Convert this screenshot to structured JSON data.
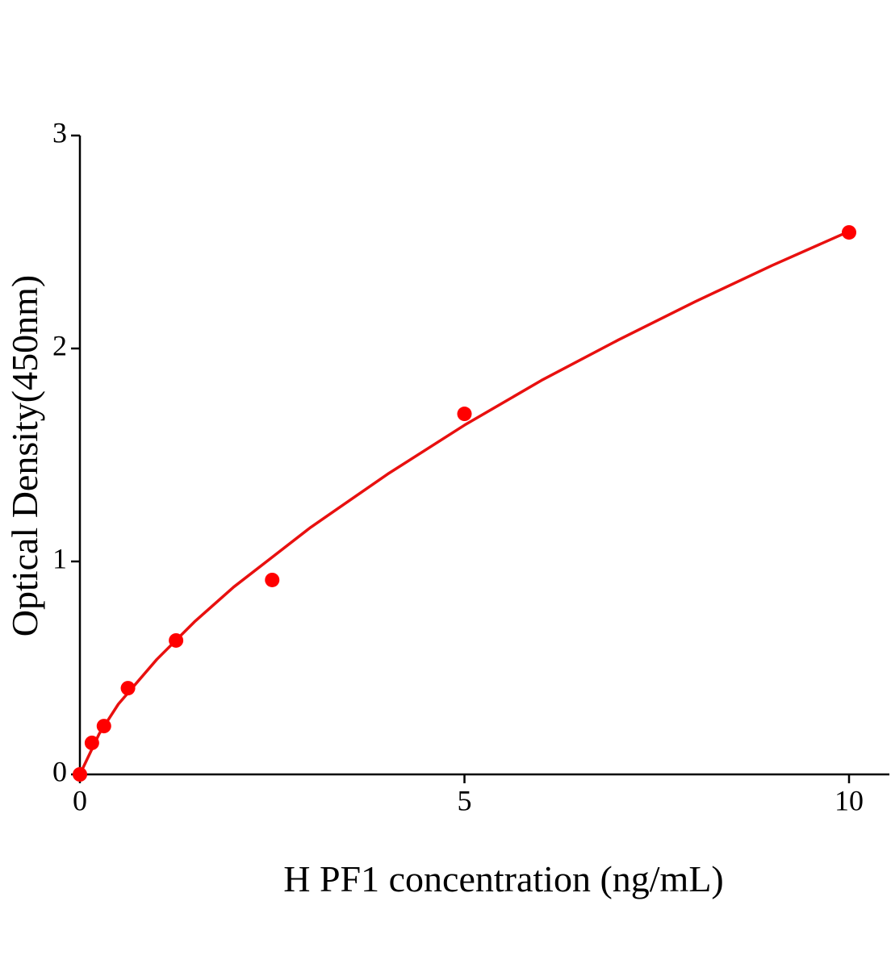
{
  "chart_data": {
    "type": "scatter",
    "x_label": "H PF1 concentration (ng/mL)",
    "y_label": "Optical Density(450nm)",
    "xlim": [
      0,
      10.5
    ],
    "xticks": [
      0,
      5,
      10
    ],
    "ylim": [
      0,
      3
    ],
    "yticks": [
      0,
      1,
      2,
      3
    ],
    "grid": false,
    "series": [
      {
        "type": "scatter",
        "color": "#ff0000",
        "x": [
          0,
          0.156,
          0.3125,
          0.625,
          1.25,
          2.5,
          5,
          10
        ],
        "values": [
          0,
          0.148,
          0.227,
          0.405,
          0.629,
          0.913,
          1.693,
          2.545
        ]
      },
      {
        "type": "line",
        "color": "#e8100f",
        "x": [
          0,
          0.25,
          0.5,
          1,
          1.5,
          2,
          2.5,
          3,
          4,
          5,
          6,
          7,
          8,
          9,
          10
        ],
        "values": [
          0,
          0.19,
          0.33,
          0.54,
          0.72,
          0.88,
          1.02,
          1.16,
          1.41,
          1.64,
          1.85,
          2.04,
          2.22,
          2.39,
          2.55
        ]
      }
    ]
  }
}
